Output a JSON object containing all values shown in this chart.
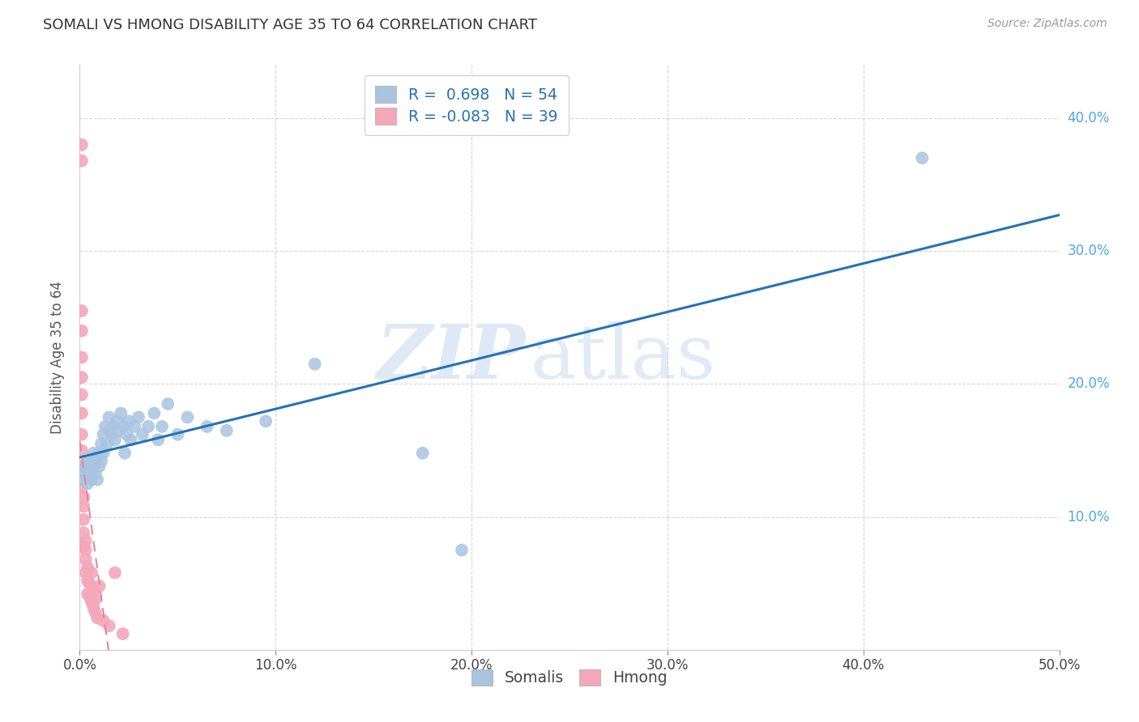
{
  "title": "SOMALI VS HMONG DISABILITY AGE 35 TO 64 CORRELATION CHART",
  "source": "Source: ZipAtlas.com",
  "ylabel": "Disability Age 35 to 64",
  "xlim": [
    0.0,
    0.5
  ],
  "ylim": [
    0.0,
    0.44
  ],
  "xticks": [
    0.0,
    0.1,
    0.2,
    0.3,
    0.4,
    0.5
  ],
  "yticks": [
    0.1,
    0.2,
    0.3,
    0.4
  ],
  "xticklabels": [
    "0.0%",
    "10.0%",
    "20.0%",
    "30.0%",
    "40.0%",
    "50.0%"
  ],
  "yticklabels": [
    "10.0%",
    "20.0%",
    "30.0%",
    "40.0%"
  ],
  "somali_R": 0.698,
  "somali_N": 54,
  "hmong_R": -0.083,
  "hmong_N": 39,
  "somali_color": "#a8c4e0",
  "hmong_color": "#f4a7b9",
  "somali_line_color": "#2472b8",
  "hmong_line_color": "#e08898",
  "watermark_zip": "ZIP",
  "watermark_atlas": "atlas",
  "somali_x": [
    0.002,
    0.002,
    0.003,
    0.003,
    0.004,
    0.004,
    0.005,
    0.005,
    0.006,
    0.006,
    0.007,
    0.007,
    0.008,
    0.008,
    0.009,
    0.009,
    0.01,
    0.01,
    0.011,
    0.011,
    0.012,
    0.012,
    0.013,
    0.014,
    0.015,
    0.015,
    0.016,
    0.017,
    0.018,
    0.019,
    0.02,
    0.021,
    0.022,
    0.023,
    0.024,
    0.025,
    0.026,
    0.028,
    0.03,
    0.032,
    0.035,
    0.038,
    0.04,
    0.042,
    0.045,
    0.05,
    0.055,
    0.065,
    0.075,
    0.095,
    0.12,
    0.175,
    0.195,
    0.43
  ],
  "somali_y": [
    0.135,
    0.128,
    0.14,
    0.132,
    0.138,
    0.125,
    0.13,
    0.142,
    0.128,
    0.135,
    0.148,
    0.138,
    0.142,
    0.132,
    0.128,
    0.145,
    0.148,
    0.138,
    0.155,
    0.142,
    0.162,
    0.148,
    0.168,
    0.155,
    0.165,
    0.175,
    0.162,
    0.168,
    0.158,
    0.172,
    0.165,
    0.178,
    0.168,
    0.148,
    0.162,
    0.172,
    0.158,
    0.168,
    0.175,
    0.162,
    0.168,
    0.178,
    0.158,
    0.168,
    0.185,
    0.162,
    0.175,
    0.168,
    0.165,
    0.172,
    0.215,
    0.148,
    0.075,
    0.37
  ],
  "hmong_x": [
    0.001,
    0.001,
    0.001,
    0.001,
    0.001,
    0.001,
    0.001,
    0.001,
    0.001,
    0.001,
    0.001,
    0.001,
    0.002,
    0.002,
    0.002,
    0.002,
    0.002,
    0.003,
    0.003,
    0.003,
    0.003,
    0.004,
    0.004,
    0.004,
    0.005,
    0.005,
    0.006,
    0.006,
    0.006,
    0.007,
    0.007,
    0.008,
    0.008,
    0.009,
    0.01,
    0.012,
    0.015,
    0.018,
    0.022
  ],
  "hmong_y": [
    0.38,
    0.368,
    0.255,
    0.24,
    0.22,
    0.205,
    0.192,
    0.178,
    0.162,
    0.15,
    0.138,
    0.122,
    0.115,
    0.108,
    0.098,
    0.088,
    0.078,
    0.082,
    0.075,
    0.068,
    0.058,
    0.062,
    0.052,
    0.042,
    0.05,
    0.04,
    0.058,
    0.046,
    0.036,
    0.044,
    0.032,
    0.028,
    0.038,
    0.024,
    0.048,
    0.022,
    0.018,
    0.058,
    0.012
  ]
}
